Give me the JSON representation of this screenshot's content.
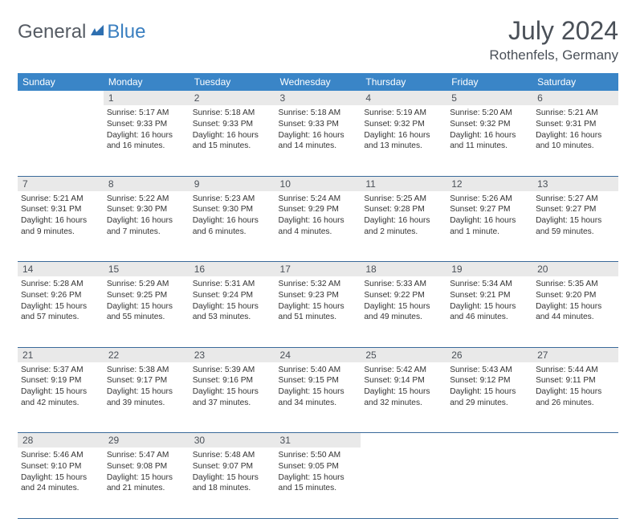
{
  "brand": {
    "part1": "General",
    "part2": "Blue"
  },
  "title": "July 2024",
  "location": "Rothenfels, Germany",
  "colors": {
    "header_bg": "#3a85c7",
    "header_text": "#ffffff",
    "daynum_bg": "#e9e9e9",
    "row_border": "#3a6a9a",
    "text": "#333333",
    "brand_gray": "#555b63",
    "brand_blue": "#3a7fc0"
  },
  "day_names": [
    "Sunday",
    "Monday",
    "Tuesday",
    "Wednesday",
    "Thursday",
    "Friday",
    "Saturday"
  ],
  "weeks": [
    {
      "nums": [
        "",
        "1",
        "2",
        "3",
        "4",
        "5",
        "6"
      ],
      "cells": [
        null,
        {
          "sunrise": "5:17 AM",
          "sunset": "9:33 PM",
          "daylight": "16 hours and 16 minutes."
        },
        {
          "sunrise": "5:18 AM",
          "sunset": "9:33 PM",
          "daylight": "16 hours and 15 minutes."
        },
        {
          "sunrise": "5:18 AM",
          "sunset": "9:33 PM",
          "daylight": "16 hours and 14 minutes."
        },
        {
          "sunrise": "5:19 AM",
          "sunset": "9:32 PM",
          "daylight": "16 hours and 13 minutes."
        },
        {
          "sunrise": "5:20 AM",
          "sunset": "9:32 PM",
          "daylight": "16 hours and 11 minutes."
        },
        {
          "sunrise": "5:21 AM",
          "sunset": "9:31 PM",
          "daylight": "16 hours and 10 minutes."
        }
      ]
    },
    {
      "nums": [
        "7",
        "8",
        "9",
        "10",
        "11",
        "12",
        "13"
      ],
      "cells": [
        {
          "sunrise": "5:21 AM",
          "sunset": "9:31 PM",
          "daylight": "16 hours and 9 minutes."
        },
        {
          "sunrise": "5:22 AM",
          "sunset": "9:30 PM",
          "daylight": "16 hours and 7 minutes."
        },
        {
          "sunrise": "5:23 AM",
          "sunset": "9:30 PM",
          "daylight": "16 hours and 6 minutes."
        },
        {
          "sunrise": "5:24 AM",
          "sunset": "9:29 PM",
          "daylight": "16 hours and 4 minutes."
        },
        {
          "sunrise": "5:25 AM",
          "sunset": "9:28 PM",
          "daylight": "16 hours and 2 minutes."
        },
        {
          "sunrise": "5:26 AM",
          "sunset": "9:27 PM",
          "daylight": "16 hours and 1 minute."
        },
        {
          "sunrise": "5:27 AM",
          "sunset": "9:27 PM",
          "daylight": "15 hours and 59 minutes."
        }
      ]
    },
    {
      "nums": [
        "14",
        "15",
        "16",
        "17",
        "18",
        "19",
        "20"
      ],
      "cells": [
        {
          "sunrise": "5:28 AM",
          "sunset": "9:26 PM",
          "daylight": "15 hours and 57 minutes."
        },
        {
          "sunrise": "5:29 AM",
          "sunset": "9:25 PM",
          "daylight": "15 hours and 55 minutes."
        },
        {
          "sunrise": "5:31 AM",
          "sunset": "9:24 PM",
          "daylight": "15 hours and 53 minutes."
        },
        {
          "sunrise": "5:32 AM",
          "sunset": "9:23 PM",
          "daylight": "15 hours and 51 minutes."
        },
        {
          "sunrise": "5:33 AM",
          "sunset": "9:22 PM",
          "daylight": "15 hours and 49 minutes."
        },
        {
          "sunrise": "5:34 AM",
          "sunset": "9:21 PM",
          "daylight": "15 hours and 46 minutes."
        },
        {
          "sunrise": "5:35 AM",
          "sunset": "9:20 PM",
          "daylight": "15 hours and 44 minutes."
        }
      ]
    },
    {
      "nums": [
        "21",
        "22",
        "23",
        "24",
        "25",
        "26",
        "27"
      ],
      "cells": [
        {
          "sunrise": "5:37 AM",
          "sunset": "9:19 PM",
          "daylight": "15 hours and 42 minutes."
        },
        {
          "sunrise": "5:38 AM",
          "sunset": "9:17 PM",
          "daylight": "15 hours and 39 minutes."
        },
        {
          "sunrise": "5:39 AM",
          "sunset": "9:16 PM",
          "daylight": "15 hours and 37 minutes."
        },
        {
          "sunrise": "5:40 AM",
          "sunset": "9:15 PM",
          "daylight": "15 hours and 34 minutes."
        },
        {
          "sunrise": "5:42 AM",
          "sunset": "9:14 PM",
          "daylight": "15 hours and 32 minutes."
        },
        {
          "sunrise": "5:43 AM",
          "sunset": "9:12 PM",
          "daylight": "15 hours and 29 minutes."
        },
        {
          "sunrise": "5:44 AM",
          "sunset": "9:11 PM",
          "daylight": "15 hours and 26 minutes."
        }
      ]
    },
    {
      "nums": [
        "28",
        "29",
        "30",
        "31",
        "",
        "",
        ""
      ],
      "cells": [
        {
          "sunrise": "5:46 AM",
          "sunset": "9:10 PM",
          "daylight": "15 hours and 24 minutes."
        },
        {
          "sunrise": "5:47 AM",
          "sunset": "9:08 PM",
          "daylight": "15 hours and 21 minutes."
        },
        {
          "sunrise": "5:48 AM",
          "sunset": "9:07 PM",
          "daylight": "15 hours and 18 minutes."
        },
        {
          "sunrise": "5:50 AM",
          "sunset": "9:05 PM",
          "daylight": "15 hours and 15 minutes."
        },
        null,
        null,
        null
      ]
    }
  ],
  "labels": {
    "sunrise": "Sunrise: ",
    "sunset": "Sunset: ",
    "daylight": "Daylight: "
  }
}
